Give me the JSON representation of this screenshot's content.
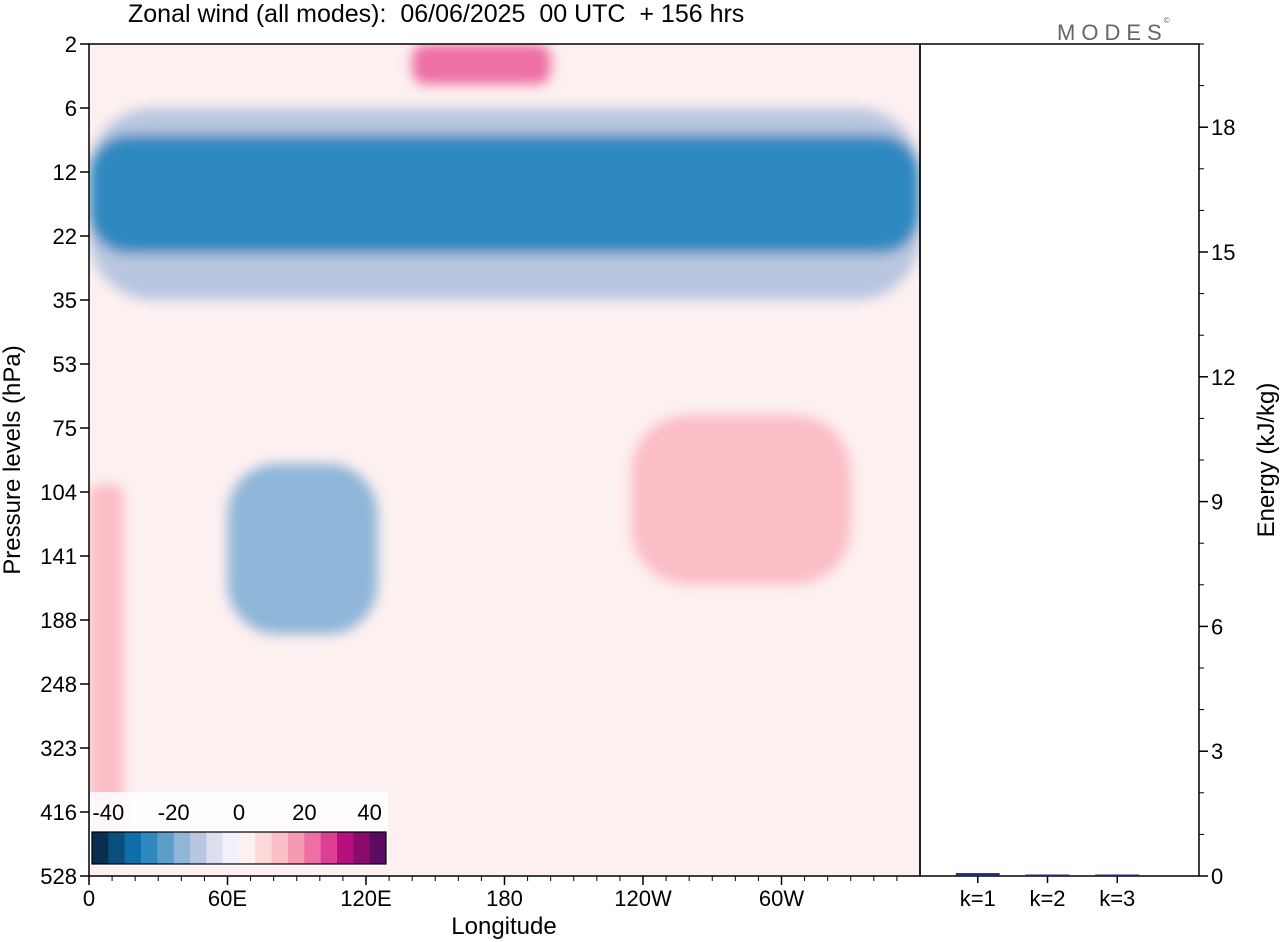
{
  "title": "Zonal wind (all modes):  06/06/2025  00 UTC  + 156 hrs",
  "brand": {
    "text": "MODES",
    "mark": "©"
  },
  "chart_data": [
    {
      "type": "heatmap",
      "title": "Zonal wind (all modes):  06/06/2025  00 UTC  + 156 hrs",
      "xlabel": "Longitude",
      "ylabel": "Pressure levels (hPa)",
      "x_ticks": [
        "0",
        "60E",
        "120E",
        "180",
        "120W",
        "60W"
      ],
      "x_tick_values": [
        0,
        60,
        120,
        180,
        240,
        300
      ],
      "xlim": [
        0,
        360
      ],
      "y_scale": "log",
      "y_ticks": [
        "2",
        "6",
        "12",
        "22",
        "35",
        "53",
        "75",
        "104",
        "141",
        "188",
        "248",
        "323",
        "416",
        "528"
      ],
      "ylim": [
        2,
        528
      ],
      "colorbar": {
        "ticks": [
          "-40",
          "-20",
          "0",
          "20",
          "40"
        ],
        "levels": [
          -45,
          -40,
          -35,
          -30,
          -25,
          -20,
          -15,
          -10,
          -5,
          0,
          5,
          10,
          15,
          20,
          25,
          30,
          35,
          40,
          45
        ],
        "colors": [
          "#082f4f",
          "#0b4f7f",
          "#0e6eac",
          "#2f89c0",
          "#5b9fc9",
          "#8fb6d8",
          "#b9c6e0",
          "#dcdff0",
          "#f2f0f8",
          "#fdf0f0",
          "#fdd8d8",
          "#fbbdc6",
          "#f59ab1",
          "#ee6fa3",
          "#de3f94",
          "#b7107e",
          "#8a0b6e",
          "#5c0a63"
        ]
      },
      "features": [
        {
          "label": "easterly jet core",
          "lon_range": [
            0,
            360
          ],
          "p_range": [
            8,
            25
          ],
          "value": -30
        },
        {
          "label": "easterly band",
          "lon_range": [
            0,
            360
          ],
          "p_range": [
            6,
            35
          ],
          "value": -15
        },
        {
          "label": "westerly stratopause",
          "lon_range": [
            140,
            200
          ],
          "p_range": [
            2,
            4
          ],
          "value": 20
        },
        {
          "label": "easterly upper troposphere",
          "lon_range": [
            60,
            125
          ],
          "p_range": [
            90,
            200
          ],
          "value": -20
        },
        {
          "label": "westerly upper troposphere",
          "lon_range": [
            235,
            330
          ],
          "p_range": [
            70,
            160
          ],
          "value": 10
        },
        {
          "label": "westerly 0E column",
          "lon_range": [
            0,
            15
          ],
          "p_range": [
            100,
            450
          ],
          "value": 10
        }
      ]
    },
    {
      "type": "bar",
      "categories": [
        "k=1",
        "k=2",
        "k=3"
      ],
      "values": [
        0.07,
        0.03,
        0.01
      ],
      "ylabel": "Energy (kJ/kg)",
      "ylim": [
        0,
        20
      ],
      "y_ticks": [
        0,
        3,
        6,
        9,
        12,
        15,
        18
      ],
      "bar_color": "#1a2a8a"
    }
  ]
}
